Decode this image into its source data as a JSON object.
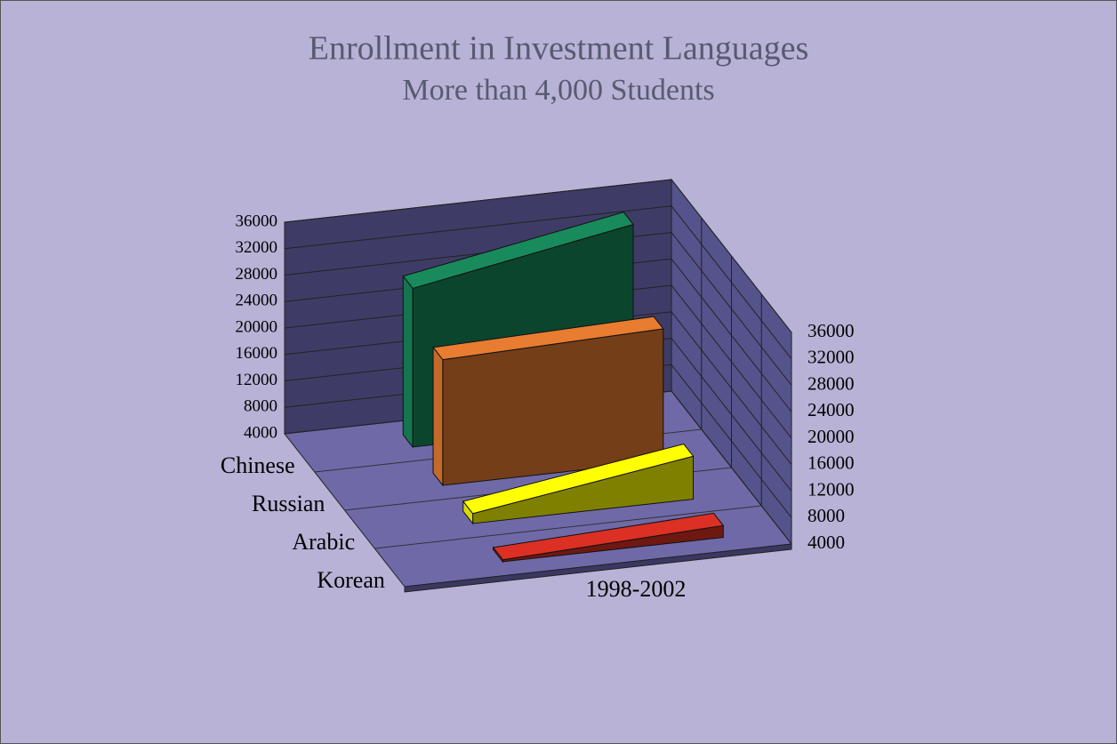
{
  "chart_data": {
    "type": "area",
    "title": "Enrollment in Investment Languages",
    "subtitle": "More than 4,000 Students",
    "x_label": "1998-2002",
    "categories": [
      null,
      null
    ],
    "series": [
      {
        "name": "Chinese",
        "color": "#188a5c",
        "values": [
          28000,
          34000
        ]
      },
      {
        "name": "Russian",
        "color": "#e87c30",
        "values": [
          23000,
          24000
        ]
      },
      {
        "name": "Arabic",
        "color": "#ffff00",
        "values": [
          5500,
          10500
        ]
      },
      {
        "name": "Korean",
        "color": "#dc3024",
        "values": [
          4300,
          5800
        ]
      }
    ],
    "ylim": [
      4000,
      36000
    ],
    "yticks": [
      4000,
      8000,
      12000,
      16000,
      20000,
      24000,
      28000,
      32000,
      36000
    ],
    "y2lim": [
      4000,
      36000
    ],
    "y2ticks": [
      4000,
      8000,
      12000,
      16000,
      20000,
      24000,
      28000,
      32000,
      36000
    ],
    "grid": true
  }
}
